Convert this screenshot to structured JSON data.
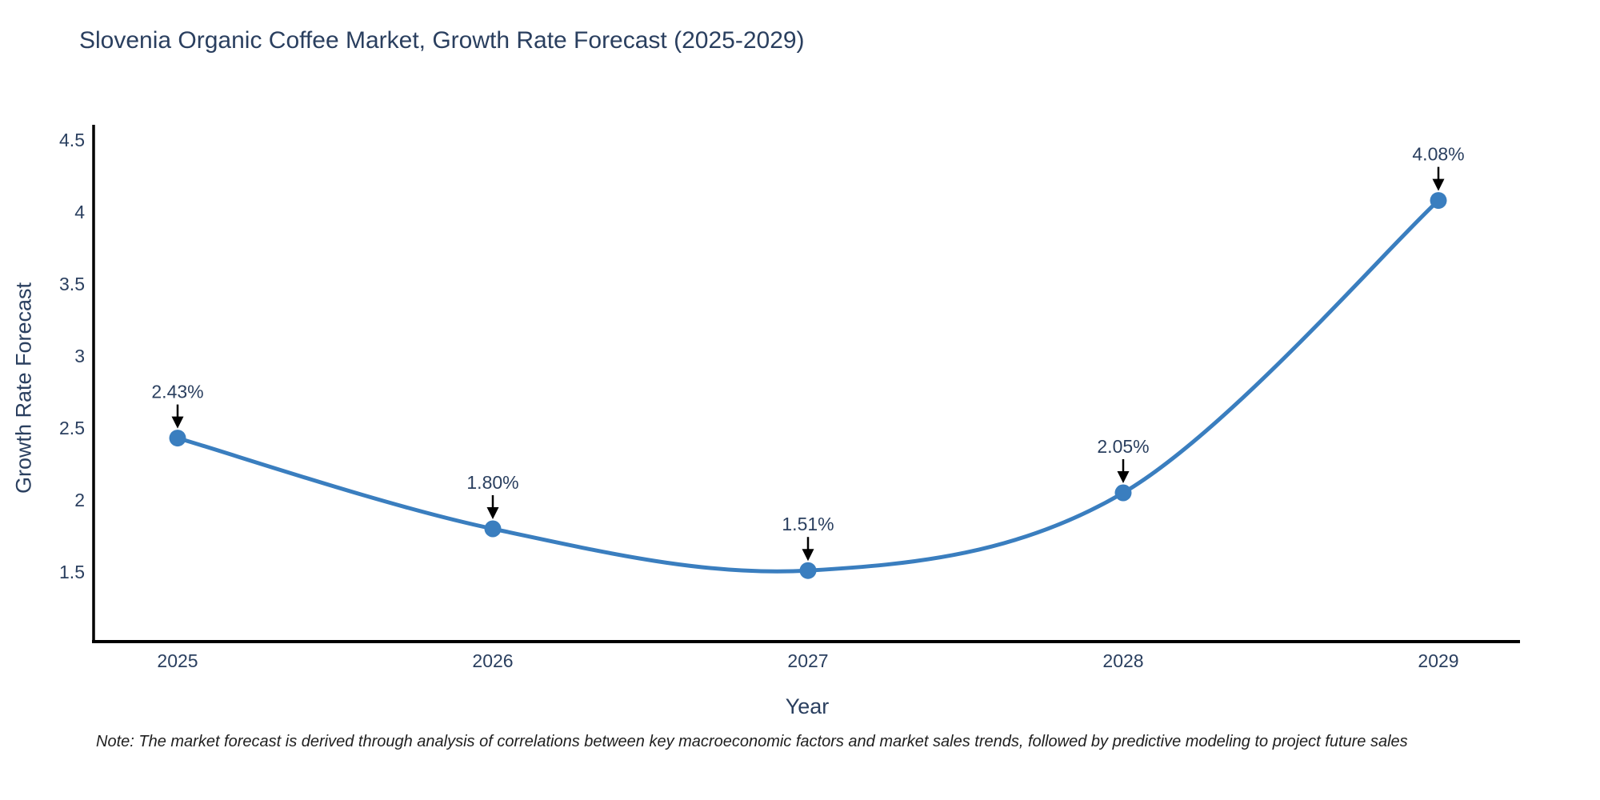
{
  "chart_data": {
    "type": "line",
    "title": "Slovenia Organic Coffee Market, Growth Rate Forecast (2025-2029)",
    "xlabel": "Year",
    "ylabel": "Growth Rate Forecast",
    "categories": [
      "2025",
      "2026",
      "2027",
      "2028",
      "2029"
    ],
    "values": [
      2.43,
      1.8,
      1.51,
      2.05,
      4.08
    ],
    "point_labels": [
      "2.43%",
      "1.80%",
      "1.51%",
      "2.05%",
      "4.08%"
    ],
    "yticks": [
      "1.5",
      "2",
      "2.5",
      "3",
      "3.5",
      "4",
      "4.5"
    ],
    "ytick_values": [
      1.5,
      2.0,
      2.5,
      3.0,
      3.5,
      4.0,
      4.5
    ],
    "ylim": [
      1.0,
      4.6
    ],
    "line_shape": "spline",
    "grid": false,
    "legend_position": "none",
    "annotations_style": "down-arrow",
    "colors": {
      "line": "#3a7ebf",
      "marker": "#3a7ebf",
      "text": "#2a3f5f",
      "axis": "#000000",
      "arrow": "#000000",
      "background": "#ffffff"
    },
    "note": "Note: The market forecast is derived through analysis of correlations between key macroeconomic factors and market sales trends, followed by predictive modeling to project future sales"
  }
}
